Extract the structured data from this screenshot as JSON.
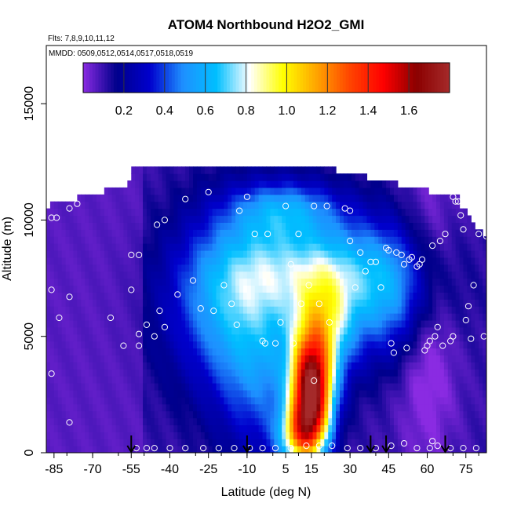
{
  "chart_data": {
    "type": "heatmap",
    "title": "ATOM4 Northbound H2O2_GMI",
    "subtitle_flights": "Flts: 7,8,9,10,11,12",
    "subtitle_dates": "MMDD: 0509,0512,0514,0517,0518,0519",
    "xlabel": "Latitude (deg N)",
    "ylabel": "Altitude (m)",
    "xlim": [
      -88,
      83
    ],
    "ylim": [
      0,
      17500
    ],
    "x_ticks": [
      -85,
      -70,
      -55,
      -40,
      -25,
      -10,
      5,
      15,
      30,
      45,
      60,
      75
    ],
    "y_ticks": [
      0,
      5000,
      10000,
      15000
    ],
    "colorbar": {
      "range": [
        0,
        1.8
      ],
      "ticks": [
        0.2,
        0.4,
        0.6,
        0.8,
        1.0,
        1.2,
        1.4,
        1.6
      ],
      "tick_labels": [
        "0.2",
        "0.4",
        "0.6",
        "0.8",
        "1.0",
        "1.2",
        "1.4",
        "1.6"
      ],
      "colors": [
        "#8a2be2",
        "#00008b",
        "#0000cd",
        "#1e90ff",
        "#00bfff",
        "#ffffff",
        "#ffff00",
        "#ffa500",
        "#ff4500",
        "#ff0000",
        "#8b0000",
        "#a52a2a"
      ]
    },
    "profile_latitudes": [
      -55,
      -10,
      38,
      44,
      67
    ],
    "samples": [
      {
        "lat": -86,
        "alt": 10100
      },
      {
        "lat": -84,
        "alt": 10100
      },
      {
        "lat": -79,
        "alt": 10500
      },
      {
        "lat": -76,
        "alt": 10700
      },
      {
        "lat": -75,
        "alt": 11300
      },
      {
        "lat": -72,
        "alt": 11300
      },
      {
        "lat": -69,
        "alt": 11400
      },
      {
        "lat": -86,
        "alt": 7000
      },
      {
        "lat": -83,
        "alt": 5800
      },
      {
        "lat": -79,
        "alt": 6700
      },
      {
        "lat": -86,
        "alt": 3400
      },
      {
        "lat": -79,
        "alt": 1300
      },
      {
        "lat": -63,
        "alt": 5800
      },
      {
        "lat": -58,
        "alt": 4600
      },
      {
        "lat": -55,
        "alt": 7000
      },
      {
        "lat": -55,
        "alt": 8500
      },
      {
        "lat": -52,
        "alt": 8500
      },
      {
        "lat": -52,
        "alt": 5100
      },
      {
        "lat": -52,
        "alt": 4600
      },
      {
        "lat": -49,
        "alt": 5500
      },
      {
        "lat": -46,
        "alt": 5000
      },
      {
        "lat": -44,
        "alt": 6100
      },
      {
        "lat": -42,
        "alt": 5400
      },
      {
        "lat": -42,
        "alt": 10000
      },
      {
        "lat": -45,
        "alt": 9800
      },
      {
        "lat": -37,
        "alt": 6800
      },
      {
        "lat": -34,
        "alt": 10900
      },
      {
        "lat": -31,
        "alt": 7400
      },
      {
        "lat": -28,
        "alt": 6200
      },
      {
        "lat": -25,
        "alt": 11200
      },
      {
        "lat": -23,
        "alt": 6100
      },
      {
        "lat": -19,
        "alt": 7200
      },
      {
        "lat": -16,
        "alt": 6400
      },
      {
        "lat": -14,
        "alt": 5500
      },
      {
        "lat": -13,
        "alt": 10400
      },
      {
        "lat": -10,
        "alt": 11000
      },
      {
        "lat": -7,
        "alt": 9400
      },
      {
        "lat": -4,
        "alt": 4800
      },
      {
        "lat": -3,
        "alt": 4700
      },
      {
        "lat": -2,
        "alt": 9400
      },
      {
        "lat": 1,
        "alt": 4700
      },
      {
        "lat": 3,
        "alt": 5600
      },
      {
        "lat": 5,
        "alt": 10600
      },
      {
        "lat": 7,
        "alt": 8100
      },
      {
        "lat": 8,
        "alt": 4700
      },
      {
        "lat": 10,
        "alt": 9400
      },
      {
        "lat": 11,
        "alt": 6400
      },
      {
        "lat": 14,
        "alt": 7200
      },
      {
        "lat": 16,
        "alt": 10600
      },
      {
        "lat": 16,
        "alt": 3100
      },
      {
        "lat": 18,
        "alt": 6400
      },
      {
        "lat": 21,
        "alt": 10600
      },
      {
        "lat": 22,
        "alt": 5600
      },
      {
        "lat": 28,
        "alt": 10500
      },
      {
        "lat": 30,
        "alt": 10400
      },
      {
        "lat": 30,
        "alt": 9100
      },
      {
        "lat": 32,
        "alt": 7100
      },
      {
        "lat": 34,
        "alt": 8600
      },
      {
        "lat": 36,
        "alt": 7800
      },
      {
        "lat": 38,
        "alt": 8200
      },
      {
        "lat": 40,
        "alt": 8200
      },
      {
        "lat": 42,
        "alt": 7100
      },
      {
        "lat": 44,
        "alt": 8800
      },
      {
        "lat": 45,
        "alt": 8700
      },
      {
        "lat": 46,
        "alt": 4700
      },
      {
        "lat": 47,
        "alt": 4300
      },
      {
        "lat": 48,
        "alt": 8600
      },
      {
        "lat": 50,
        "alt": 8500
      },
      {
        "lat": 51,
        "alt": 8100
      },
      {
        "lat": 52,
        "alt": 4500
      },
      {
        "lat": 53,
        "alt": 8300
      },
      {
        "lat": 54,
        "alt": 8400
      },
      {
        "lat": 56,
        "alt": 8000
      },
      {
        "lat": 57,
        "alt": 8100
      },
      {
        "lat": 58,
        "alt": 8300
      },
      {
        "lat": 59,
        "alt": 4400
      },
      {
        "lat": 60,
        "alt": 4600
      },
      {
        "lat": 61,
        "alt": 4800
      },
      {
        "lat": 62,
        "alt": 8900
      },
      {
        "lat": 63,
        "alt": 5000
      },
      {
        "lat": 64,
        "alt": 5400
      },
      {
        "lat": 65,
        "alt": 9100
      },
      {
        "lat": 66,
        "alt": 4600
      },
      {
        "lat": 67,
        "alt": 9400
      },
      {
        "lat": 69,
        "alt": 4800
      },
      {
        "lat": 70,
        "alt": 5000
      },
      {
        "lat": 70,
        "alt": 11000
      },
      {
        "lat": 71,
        "alt": 10800
      },
      {
        "lat": 72,
        "alt": 10800
      },
      {
        "lat": 73,
        "alt": 10200
      },
      {
        "lat": 74,
        "alt": 9600
      },
      {
        "lat": 75,
        "alt": 5700
      },
      {
        "lat": 76,
        "alt": 6300
      },
      {
        "lat": 77,
        "alt": 4900
      },
      {
        "lat": 78,
        "alt": 7200
      },
      {
        "lat": 80,
        "alt": 9400
      },
      {
        "lat": 82,
        "alt": 5000
      },
      {
        "lat": 83,
        "alt": 9300
      },
      {
        "lat": -53,
        "alt": 200
      },
      {
        "lat": -49,
        "alt": 200
      },
      {
        "lat": -46,
        "alt": 200
      },
      {
        "lat": -40,
        "alt": 200
      },
      {
        "lat": -34,
        "alt": 200
      },
      {
        "lat": -27,
        "alt": 200
      },
      {
        "lat": -21,
        "alt": 200
      },
      {
        "lat": -15,
        "alt": 200
      },
      {
        "lat": -9,
        "alt": 200
      },
      {
        "lat": -4,
        "alt": 200
      },
      {
        "lat": 1,
        "alt": 200
      },
      {
        "lat": 7,
        "alt": 200
      },
      {
        "lat": 13,
        "alt": 300
      },
      {
        "lat": 18,
        "alt": 300
      },
      {
        "lat": 23,
        "alt": 300
      },
      {
        "lat": 29,
        "alt": 200
      },
      {
        "lat": 34,
        "alt": 200
      },
      {
        "lat": 40,
        "alt": 200
      },
      {
        "lat": 46,
        "alt": 300
      },
      {
        "lat": 51,
        "alt": 400
      },
      {
        "lat": 56,
        "alt": 200
      },
      {
        "lat": 61,
        "alt": 200
      },
      {
        "lat": 62,
        "alt": 500
      },
      {
        "lat": 64,
        "alt": 300
      },
      {
        "lat": 69,
        "alt": 200
      },
      {
        "lat": 74,
        "alt": 200
      },
      {
        "lat": 79,
        "alt": 200
      }
    ]
  }
}
